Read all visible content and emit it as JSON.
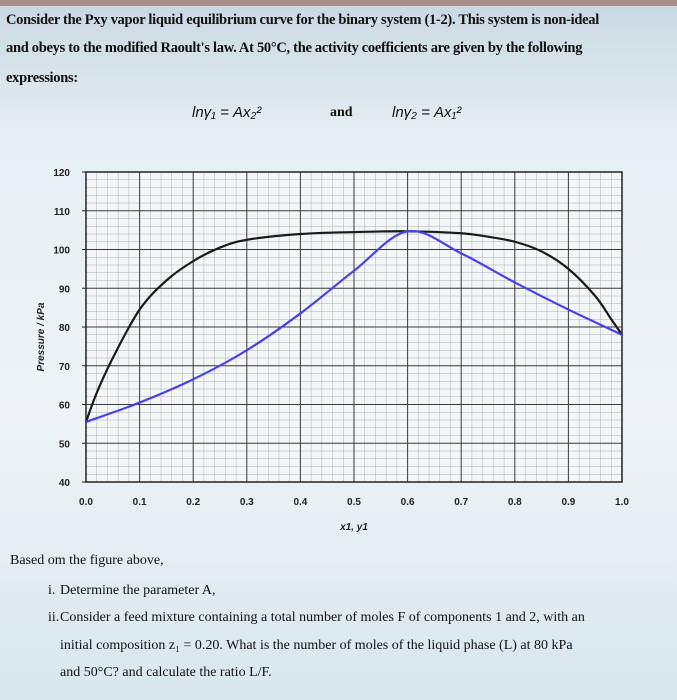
{
  "problem": {
    "intro_lines": [
      "Consider the Pxy vapor liquid equilibrium curve for the binary system (1-2). This system is non-ideal",
      "and obeys to the modified Raoult's law. At 50°C, the activity coefficients are given by the following",
      "expressions:"
    ],
    "equation_1": "lnγ₁ = Ax₂²",
    "equation_join": "and",
    "equation_2": "lnγ₂ = Ax₁²",
    "lead": "Based om the figure above,",
    "items": [
      {
        "num": "i.",
        "text": "Determine the parameter A,"
      },
      {
        "num": "ii.",
        "text": "Consider a feed mixture containing a total number of moles F of components 1 and 2, with an"
      },
      {
        "num": "",
        "text": "initial composition z₁ = 0.20. What is the number of moles of the liquid phase (L) at 80 kPa"
      },
      {
        "num": "",
        "text": "and 50°C? and calculate the ratio L/F."
      }
    ]
  },
  "chart_data": {
    "type": "line",
    "title": "",
    "xlabel": "x1, y1",
    "ylabel": "Pressure / kPa",
    "xlim": [
      0,
      1
    ],
    "ylim": [
      40,
      120
    ],
    "xticks": [
      "0.0",
      "0.1",
      "0.2",
      "0.3",
      "0.4",
      "0.5",
      "0.6",
      "0.7",
      "0.8",
      "0.9",
      "1.0"
    ],
    "yticks": [
      "40",
      "50",
      "60",
      "70",
      "80",
      "90",
      "100",
      "110",
      "120"
    ],
    "grid": true,
    "legend": "none",
    "series": [
      {
        "color": "#1a1a1a",
        "x": [
          0,
          0.02,
          0.05,
          0.1,
          0.15,
          0.2,
          0.25,
          0.3,
          0.4,
          0.5,
          0.6,
          0.7,
          0.75,
          0.8,
          0.85,
          0.9,
          0.95,
          0.98,
          1.0
        ],
        "y": [
          55.5,
          63,
          72,
          84.5,
          92,
          97,
          100.5,
          102.5,
          104,
          104.5,
          104.7,
          104.2,
          103.3,
          102,
          99.5,
          95,
          88,
          82,
          78
        ]
      },
      {
        "color": "#4a3ff0",
        "x": [
          0,
          0.1,
          0.2,
          0.3,
          0.4,
          0.5,
          0.6,
          0.7,
          0.8,
          0.9,
          1.0
        ],
        "y": [
          55.5,
          60.5,
          66.5,
          74,
          83.5,
          94.5,
          104.7,
          99,
          91.5,
          84.5,
          78
        ]
      }
    ]
  }
}
